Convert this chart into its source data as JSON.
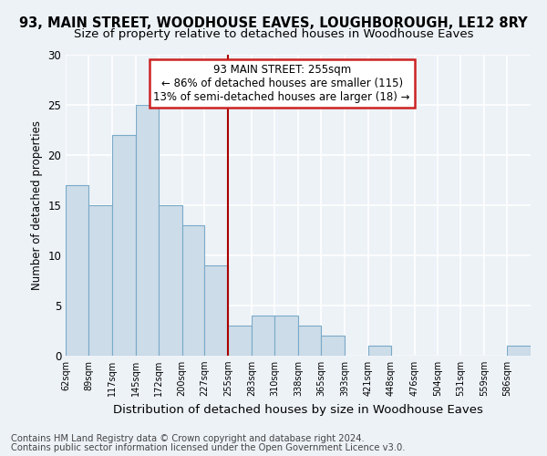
{
  "title1": "93, MAIN STREET, WOODHOUSE EAVES, LOUGHBOROUGH, LE12 8RY",
  "title2": "Size of property relative to detached houses in Woodhouse Eaves",
  "xlabel": "Distribution of detached houses by size in Woodhouse Eaves",
  "ylabel": "Number of detached properties",
  "footer1": "Contains HM Land Registry data © Crown copyright and database right 2024.",
  "footer2": "Contains public sector information licensed under the Open Government Licence v3.0.",
  "bin_edges": [
    62,
    89,
    117,
    145,
    172,
    200,
    227,
    255,
    283,
    310,
    338,
    365,
    393,
    421,
    448,
    476,
    504,
    531,
    559,
    586,
    614
  ],
  "bar_heights": [
    17,
    15,
    22,
    25,
    15,
    13,
    9,
    3,
    4,
    4,
    3,
    2,
    0,
    1,
    0,
    0,
    0,
    0,
    0,
    1
  ],
  "bar_color": "#ccdce8",
  "bar_edge_color": "#7aaac8",
  "ref_line_x": 255,
  "ref_line_color": "#aa0000",
  "annotation_line1": "93 MAIN STREET: 255sqm",
  "annotation_line2": "← 86% of detached houses are smaller (115)",
  "annotation_line3": "13% of semi-detached houses are larger (18) →",
  "annotation_box_color": "#ffffff",
  "annotation_box_edge_color": "#cc2222",
  "ylim": [
    0,
    30
  ],
  "yticks": [
    0,
    5,
    10,
    15,
    20,
    25,
    30
  ],
  "background_color": "#edf2f7",
  "grid_color": "#ffffff",
  "title1_fontsize": 10.5,
  "title2_fontsize": 9.5,
  "xlabel_fontsize": 9.5,
  "ylabel_fontsize": 8.5,
  "annotation_fontsize": 8.5,
  "footer_fontsize": 7.2,
  "xtick_fontsize": 7.0,
  "ytick_fontsize": 8.5
}
